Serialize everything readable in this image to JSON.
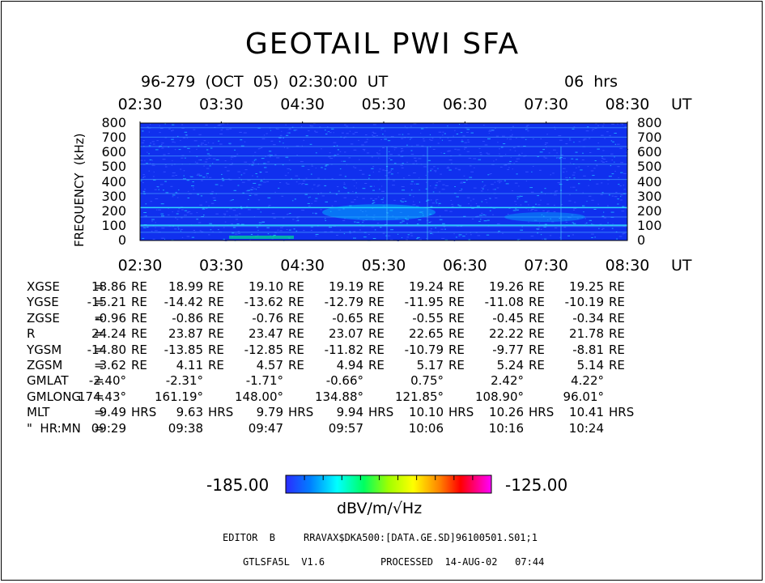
{
  "title": "GEOTAIL  PWI  SFA",
  "header": {
    "datetime": "96-279  (OCT  05)  02:30:00  UT",
    "duration": "06  hrs"
  },
  "chart_data": {
    "type": "heatmap",
    "ylabel": "FREQUENCY  (kHz)",
    "ylim": [
      0,
      800
    ],
    "y_ticks": [
      "800",
      "700",
      "600",
      "500",
      "400",
      "300",
      "200",
      "100",
      "0"
    ],
    "time_ticks": [
      "02:30",
      "03:30",
      "04:30",
      "05:30",
      "06:30",
      "07:30",
      "08:30"
    ],
    "time_unit": "UT",
    "colorbar": {
      "min": "-185.00",
      "max": "-125.00",
      "unit": "dBV/m/√Hz",
      "colors": [
        "#2020ff",
        "#00e0ff",
        "#00ff80",
        "#ffff00",
        "#ff0000",
        "#ff00ff"
      ]
    }
  },
  "orbit": {
    "rows": [
      {
        "label": "XGSE",
        "sep": "=",
        "values": [
          "18.86",
          "18.99",
          "19.10",
          "19.19",
          "19.24",
          "19.26",
          "19.25"
        ],
        "unit": "RE"
      },
      {
        "label": "YGSE",
        "sep": "=",
        "values": [
          "-15.21",
          "-14.42",
          "-13.62",
          "-12.79",
          "-11.95",
          "-11.08",
          "-10.19"
        ],
        "unit": "RE"
      },
      {
        "label": "ZGSE",
        "sep": "=",
        "values": [
          "-0.96",
          "-0.86",
          "-0.76",
          "-0.65",
          "-0.55",
          "-0.45",
          "-0.34"
        ],
        "unit": "RE"
      },
      {
        "label": "R",
        "sep": "=",
        "values": [
          "24.24",
          "23.87",
          "23.47",
          "23.07",
          "22.65",
          "22.22",
          "21.78"
        ],
        "unit": "RE"
      },
      {
        "label": "YGSM",
        "sep": "=",
        "values": [
          "-14.80",
          "-13.85",
          "-12.85",
          "-11.82",
          "-10.79",
          "-9.77",
          "-8.81"
        ],
        "unit": "RE"
      },
      {
        "label": "ZGSM",
        "sep": "=",
        "values": [
          "3.62",
          "4.11",
          "4.57",
          "4.94",
          "5.17",
          "5.24",
          "5.14"
        ],
        "unit": "RE"
      },
      {
        "label": "GMLAT",
        "sep": "=",
        "values": [
          "-2.40°",
          "-2.31°",
          "-1.71°",
          "-0.66°",
          "0.75°",
          "2.42°",
          "4.22°"
        ],
        "unit": ""
      },
      {
        "label": "GMLONG",
        "sep": "=",
        "values": [
          "174.43°",
          "161.19°",
          "148.00°",
          "134.88°",
          "121.85°",
          "108.90°",
          "96.01°"
        ],
        "unit": ""
      },
      {
        "label": "MLT",
        "sep": "=",
        "values": [
          "9.49",
          "9.63",
          "9.79",
          "9.94",
          "10.10",
          "10.26",
          "10.41"
        ],
        "unit": "HRS"
      },
      {
        "label": "\"  HR:MN",
        "sep": "=",
        "values": [
          "09:29",
          "09:38",
          "09:47",
          "09:57",
          "10:06",
          "10:16",
          "10:24"
        ],
        "unit": ""
      }
    ]
  },
  "footer": {
    "editor": "EDITOR  B",
    "path": "RRAVAX$DKA500:[DATA.GE.SD]96100501.S01;1",
    "version": "GTLSFA5L  V1.6",
    "processed": "PROCESSED  14-AUG-02   07:44"
  }
}
